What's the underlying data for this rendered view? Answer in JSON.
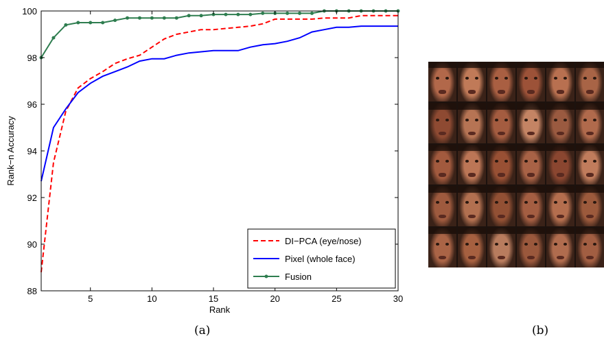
{
  "chart_data": {
    "type": "line",
    "title": "",
    "xlabel": "Rank",
    "ylabel": "Rank−n Accuracy",
    "xlim": [
      1,
      30
    ],
    "ylim": [
      88,
      100
    ],
    "xticks": [
      5,
      10,
      15,
      20,
      25,
      30
    ],
    "yticks": [
      88,
      90,
      92,
      94,
      96,
      98,
      100
    ],
    "grid": false,
    "legend_position": "bottom-right",
    "series": [
      {
        "name": "DI−PCA (eye/nose)",
        "style": "dashed",
        "color": "#ff0000",
        "x": [
          1,
          2,
          3,
          4,
          5,
          6,
          7,
          8,
          9,
          10,
          11,
          12,
          13,
          14,
          15,
          16,
          17,
          18,
          19,
          20,
          21,
          22,
          23,
          24,
          25,
          26,
          27,
          28,
          29,
          30
        ],
        "y": [
          88.8,
          93.5,
          95.7,
          96.7,
          97.1,
          97.4,
          97.75,
          97.95,
          98.1,
          98.45,
          98.8,
          99.0,
          99.1,
          99.2,
          99.2,
          99.25,
          99.3,
          99.35,
          99.45,
          99.65,
          99.65,
          99.65,
          99.65,
          99.7,
          99.7,
          99.7,
          99.8,
          99.8,
          99.8,
          99.8
        ]
      },
      {
        "name": "Pixel (whole face)",
        "style": "solid",
        "color": "#0000ff",
        "x": [
          1,
          2,
          3,
          4,
          5,
          6,
          7,
          8,
          9,
          10,
          11,
          12,
          13,
          14,
          15,
          16,
          17,
          18,
          19,
          20,
          21,
          22,
          23,
          24,
          25,
          26,
          27,
          28,
          29,
          30
        ],
        "y": [
          92.7,
          95.0,
          95.8,
          96.5,
          96.9,
          97.2,
          97.4,
          97.6,
          97.85,
          97.95,
          97.95,
          98.1,
          98.2,
          98.25,
          98.3,
          98.3,
          98.3,
          98.45,
          98.55,
          98.6,
          98.7,
          98.85,
          99.1,
          99.2,
          99.3,
          99.3,
          99.35,
          99.35,
          99.35,
          99.35
        ]
      },
      {
        "name": "Fusion",
        "style": "solid-markers",
        "color": "#2e7d4f",
        "x": [
          1,
          2,
          3,
          4,
          5,
          6,
          7,
          8,
          9,
          10,
          11,
          12,
          13,
          14,
          15,
          16,
          17,
          18,
          19,
          20,
          21,
          22,
          23,
          24,
          25,
          26,
          27,
          28,
          29,
          30
        ],
        "y": [
          98.0,
          98.85,
          99.4,
          99.5,
          99.5,
          99.5,
          99.6,
          99.7,
          99.7,
          99.7,
          99.7,
          99.7,
          99.8,
          99.8,
          99.85,
          99.85,
          99.85,
          99.85,
          99.9,
          99.9,
          99.9,
          99.9,
          99.9,
          100,
          100,
          100,
          100,
          100,
          100,
          100
        ]
      }
    ]
  },
  "captions": {
    "a": "(a)",
    "b": "(b)"
  },
  "face_grid": {
    "rows": 5,
    "cols": 6,
    "tones": [
      "#b2684a",
      "#c07a58",
      "#a95f42",
      "#9c5238",
      "#b87050",
      "#a86446",
      "#8e4a32",
      "#b67454",
      "#a45c40",
      "#c48464",
      "#9a5a40",
      "#b06a4c",
      "#a25a3e",
      "#bc7656",
      "#985034",
      "#a86246",
      "#8a4630",
      "#c07c5c",
      "#9e5a3e",
      "#b27050",
      "#925034",
      "#a45e42",
      "#b46e4e",
      "#9c5a3c",
      "#aa6446",
      "#a66040",
      "#b87c5e",
      "#9a583c",
      "#b06c4e",
      "#a25e42"
    ]
  }
}
